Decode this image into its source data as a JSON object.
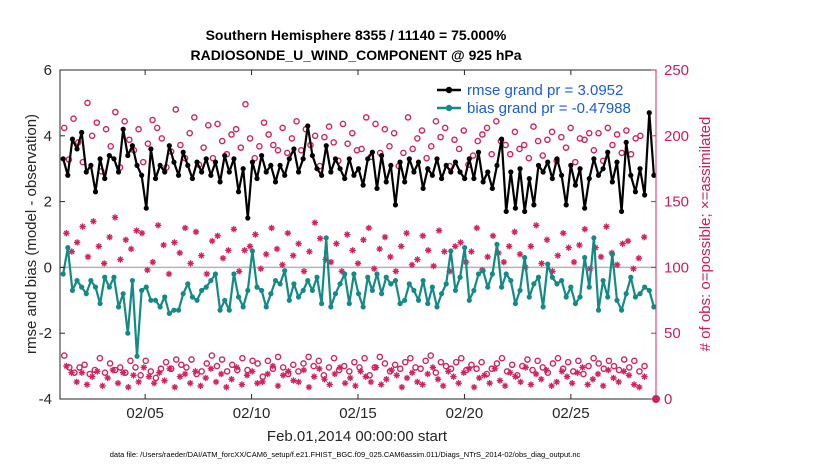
{
  "chart_data": {
    "type": "line",
    "title_line1": "Southern Hemisphere 8355 / 11140 = 75.000%",
    "title_line2": "RADIOSONDE_U_WIND_COMPONENT @ 925 hPa",
    "xlabel": "Feb.01,2014 00:00:00 start",
    "ylabel": "rmse and bias (model - observation)",
    "y2label": "# of obs: o=possible; ×=assimilated",
    "xlim": [
      1.0,
      29.0
    ],
    "ylim": [
      -4,
      6
    ],
    "y2lim": [
      0,
      250
    ],
    "x_ticks": [
      5,
      10,
      15,
      20,
      25
    ],
    "x_tick_labels": [
      "02/05",
      "02/10",
      "02/15",
      "02/20",
      "02/25"
    ],
    "y_ticks": [
      "-4",
      "-2",
      "0",
      "2",
      "4",
      "6"
    ],
    "y2_ticks": [
      "0",
      "50",
      "100",
      "150",
      "200",
      "250"
    ],
    "zero_line": 0,
    "footnote": "data file: /Users/raeder/DAI/ATM_forcXX/CAM6_setup/f.e21.FHIST_BGC.f09_025.CAM6assim.011/Diags_NTrS_2014-02/obs_diag_output.nc",
    "colors": {
      "rmse": "#000000",
      "bias": "#148a87",
      "counts": "#d0245e",
      "legend_text": "#1a5cd6",
      "zero": "#b4b4b4"
    },
    "series": [
      {
        "name": "rmse grand pr = 3.0952",
        "color": "#000000",
        "values": [
          3.3,
          2.8,
          3.9,
          3.6,
          4.1,
          2.9,
          3.1,
          2.3,
          3.3,
          2.7,
          3.4,
          3.3,
          2.9,
          4.2,
          3.4,
          3.7,
          3.1,
          2.8,
          1.8,
          3.6,
          2.7,
          3.1,
          2.9,
          3.7,
          3.2,
          2.8,
          3.5,
          3.1,
          2.7,
          3.2,
          2.9,
          3.3,
          2.8,
          3.2,
          2.6,
          3.4,
          2.9,
          3.3,
          2.3,
          3.0,
          1.5,
          3.2,
          2.7,
          3.4,
          2.9,
          3.1,
          2.6,
          3.1,
          2.8,
          3.3,
          3.6,
          2.9,
          3.3,
          4.3,
          3.4,
          3.0,
          2.8,
          3.7,
          2.9,
          3.3,
          3.0,
          2.7,
          3.3,
          2.8,
          3.0,
          2.5,
          3.3,
          3.5,
          2.4,
          3.4,
          2.6,
          3.1,
          1.9,
          3.2,
          2.6,
          3.3,
          2.9,
          3.2,
          2.4,
          3.0,
          2.8,
          3.3,
          2.7,
          3.1,
          2.9,
          3.2,
          2.9,
          2.7,
          3.3,
          2.7,
          3.5,
          2.6,
          2.9,
          2.4,
          3.1,
          3.9,
          1.7,
          2.9,
          1.8,
          3.0,
          1.7,
          2.7,
          1.9,
          3.1,
          2.9,
          3.2,
          2.7,
          3.3,
          2.8,
          1.9,
          3.1,
          2.5,
          3.0,
          1.8,
          2.7,
          3.3,
          2.8,
          3.0,
          3.5,
          2.6,
          3.2,
          1.7,
          3.8,
          2.8,
          2.3,
          3.0,
          2.2,
          4.7,
          2.8
        ],
        "mean": 3.0952
      },
      {
        "name": "bias grand pr = -0.47988",
        "color": "#148a87",
        "values": [
          -0.2,
          0.6,
          -0.7,
          -0.4,
          -0.6,
          -0.8,
          -0.4,
          -0.6,
          -1.1,
          -0.3,
          -0.6,
          -0.3,
          -1.2,
          -0.8,
          -2.0,
          -0.4,
          -2.7,
          -0.7,
          -0.6,
          -1.0,
          -1.0,
          -1.2,
          -0.9,
          -1.4,
          -1.3,
          -1.3,
          -0.8,
          -0.5,
          -0.9,
          -1.0,
          -0.7,
          -0.6,
          -0.4,
          -0.2,
          -1.3,
          -1.0,
          -1.3,
          -0.2,
          -0.9,
          -1.2,
          -0.7,
          0.5,
          -0.6,
          -0.7,
          -1.2,
          -0.8,
          -0.4,
          -0.5,
          -0.1,
          -1.0,
          -0.5,
          -0.9,
          -0.7,
          -0.4,
          -0.7,
          -0.3,
          -1.1,
          0.9,
          -1.2,
          -0.8,
          -0.5,
          -0.2,
          -1.1,
          -0.2,
          -0.8,
          -1.2,
          -0.3,
          -0.7,
          -0.2,
          -0.8,
          -0.3,
          -0.5,
          -0.4,
          -1.1,
          -1.0,
          -0.5,
          -0.7,
          -1.0,
          -0.4,
          -1.1,
          -0.6,
          -1.2,
          -0.8,
          -0.5,
          0.5,
          -0.7,
          -0.3,
          0.6,
          -1.0,
          -0.7,
          -0.2,
          -0.1,
          -0.6,
          -0.2,
          0.7,
          -0.6,
          -0.2,
          -0.4,
          -1.1,
          -0.7,
          0.3,
          -0.9,
          -0.5,
          -0.3,
          -1.2,
          0.1,
          -0.3,
          -0.5,
          -0.4,
          -0.9,
          -0.6,
          -1.1,
          -0.9,
          0.3,
          -0.6,
          0.9,
          -1.3,
          -0.4,
          -0.9,
          0.4,
          -1.0,
          -1.3,
          -0.8,
          -0.3,
          -0.9,
          -0.8,
          -0.6,
          -0.7,
          -1.2
        ],
        "mean": -0.47988
      }
    ],
    "obs_counts_possible": [
      206,
      182,
      213,
      195,
      180,
      225,
      200,
      210,
      173,
      205,
      192,
      218,
      176,
      211,
      197,
      189,
      205,
      180,
      194,
      212,
      206,
      198,
      176,
      188,
      220,
      193,
      183,
      202,
      214,
      178,
      191,
      208,
      183,
      209,
      196,
      186,
      201,
      205,
      191,
      224,
      198,
      183,
      192,
      210,
      201,
      193,
      189,
      206,
      187,
      198,
      211,
      189,
      205,
      193,
      200,
      177,
      199,
      207,
      195,
      181,
      209,
      194,
      202,
      189,
      190,
      214,
      184,
      209,
      187,
      205,
      192,
      202,
      177,
      187,
      214,
      190,
      198,
      204,
      183,
      192,
      211,
      199,
      206,
      177,
      197,
      190,
      204,
      178,
      185,
      196,
      201,
      206,
      186,
      211,
      196,
      193,
      186,
      203,
      190,
      193,
      183,
      207,
      196,
      185,
      197,
      203,
      181,
      199,
      191,
      206,
      180,
      198,
      197,
      202,
      189,
      202,
      181,
      206,
      193,
      201,
      187,
      204,
      186,
      198,
      200,
      0
    ],
    "obs_counts_possible_low": [
      33,
      24,
      20,
      24,
      26,
      19,
      22,
      31,
      20,
      27,
      22,
      24,
      20,
      29,
      24,
      18,
      29,
      21,
      16,
      23,
      28,
      23,
      30,
      26,
      24,
      30,
      19,
      21,
      27,
      33,
      25,
      30,
      21,
      26,
      22,
      31,
      22,
      29,
      27,
      17,
      29,
      23,
      32,
      24,
      19,
      26,
      21,
      27,
      32,
      25,
      29,
      18,
      24,
      31,
      22,
      25,
      21,
      28,
      24,
      31,
      18,
      24,
      32,
      27,
      21,
      26,
      23,
      28,
      31,
      24,
      23,
      29,
      33,
      20,
      28,
      25,
      23,
      28,
      31,
      22,
      26,
      23,
      28,
      19,
      23,
      27,
      31,
      21,
      26,
      18,
      25,
      30,
      22,
      29,
      24,
      20,
      27,
      31,
      23,
      28,
      21,
      29,
      19,
      25,
      31,
      27,
      23,
      29,
      25,
      22,
      30,
      24,
      29,
      21,
      25
    ],
    "obs_counts_assimilated": [
      126,
      112,
      119,
      131,
      108,
      135,
      116,
      103,
      123,
      138,
      106,
      121,
      114,
      128,
      126,
      98,
      104,
      132,
      117,
      95,
      119,
      111,
      130,
      103,
      127,
      109,
      95,
      120,
      124,
      107,
      113,
      129,
      97,
      113,
      116,
      125,
      99,
      110,
      130,
      114,
      102,
      126,
      109,
      118,
      97,
      112,
      134,
      122,
      106,
      104,
      118,
      97,
      125,
      113,
      103,
      121,
      130,
      99,
      114,
      123,
      108,
      97,
      116,
      126,
      102,
      106,
      124,
      113,
      101,
      128,
      112,
      97,
      116,
      119,
      104,
      112,
      130,
      98,
      108,
      124,
      111,
      104,
      116,
      127,
      110,
      100,
      116,
      132,
      103,
      121,
      97,
      109,
      126,
      115,
      104,
      117,
      129,
      99,
      115,
      108,
      131,
      111,
      102,
      118,
      120,
      99,
      107,
      123
    ],
    "obs_counts_assimilated_low": [
      25,
      20,
      13,
      20,
      11,
      17,
      21,
      10,
      16,
      22,
      12,
      20,
      9,
      18,
      13,
      24,
      17,
      12,
      20,
      14,
      23,
      9,
      17,
      19,
      12,
      21,
      10,
      16,
      23,
      13,
      19,
      9,
      15,
      24,
      11,
      18,
      21,
      12,
      13,
      19,
      25,
      10,
      18,
      21,
      14,
      13,
      22,
      9,
      17,
      23,
      15,
      11,
      19,
      24,
      12,
      16,
      10,
      21,
      17,
      13,
      24,
      11,
      15,
      22,
      18,
      9,
      16,
      20,
      13,
      11,
      19,
      24,
      15,
      10,
      21,
      17,
      12,
      20,
      23,
      9,
      16,
      18,
      12,
      23,
      14,
      10,
      20,
      17,
      13,
      24,
      11,
      19,
      15,
      22,
      10,
      13,
      21,
      17,
      12,
      20,
      24,
      11,
      15,
      19,
      10,
      22,
      16,
      13,
      21,
      18,
      11,
      9,
      17
    ],
    "zero_marker_at_end": 0
  }
}
